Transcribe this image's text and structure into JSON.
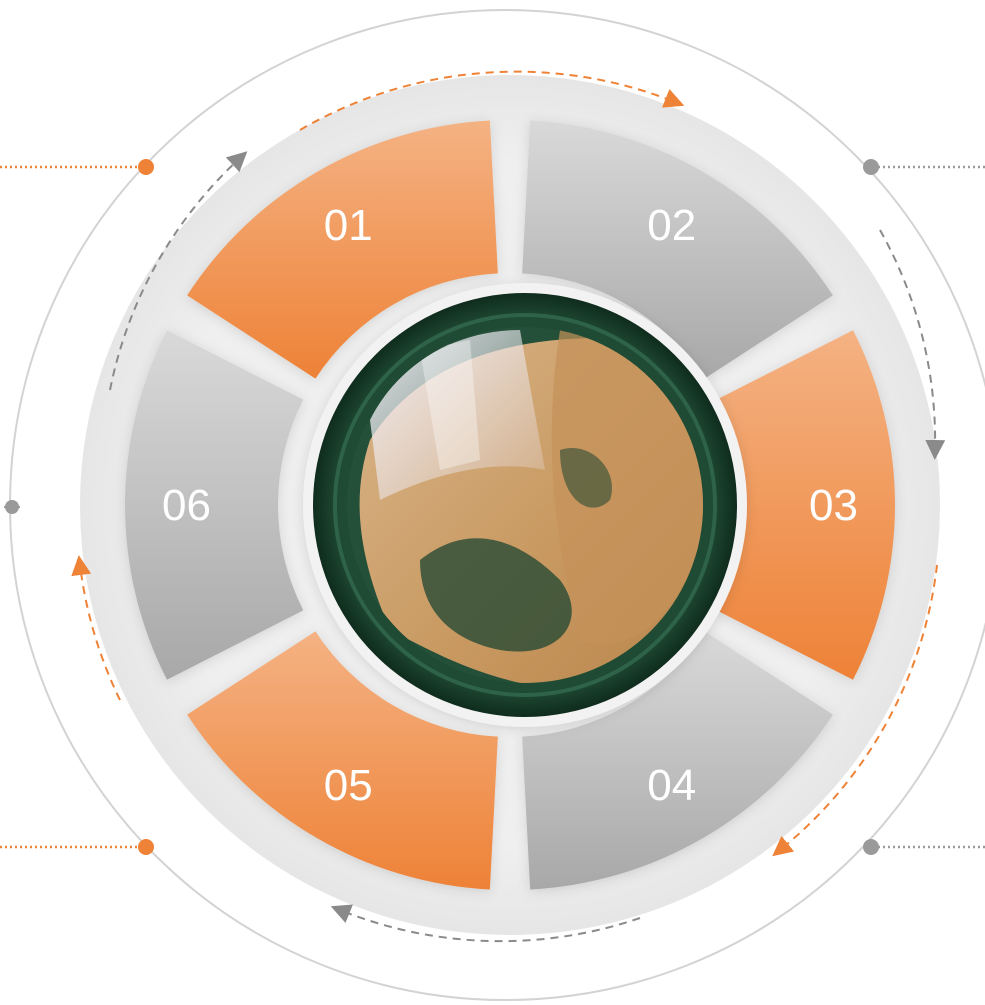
{
  "diagram": {
    "segments": [
      {
        "number": "01",
        "tone": "orange"
      },
      {
        "number": "02",
        "tone": "gray"
      },
      {
        "number": "03",
        "tone": "orange"
      },
      {
        "number": "04",
        "tone": "gray"
      },
      {
        "number": "05",
        "tone": "orange"
      },
      {
        "number": "06",
        "tone": "gray"
      }
    ],
    "center_image": {
      "subject": "green dish with grains"
    },
    "colors": {
      "orange_light": "#f4b283",
      "orange_dark": "#ee8237",
      "gray_light": "#d7d7d7",
      "gray_dark": "#a9a9a9",
      "ring_background": "#eaeaea",
      "outer_line": "#d3d3d3",
      "dish_green": "#1f4a33"
    }
  }
}
